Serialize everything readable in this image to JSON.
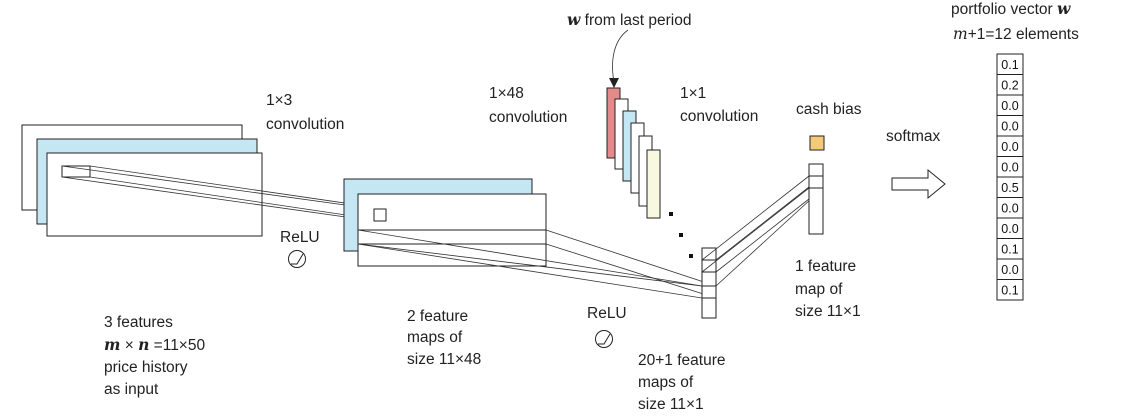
{
  "labels": {
    "conv_1x3_line1": "1×3",
    "conv_1x3_line2": "convolution",
    "conv_1x48_line1": "1×48",
    "conv_1x48_line2": "convolution",
    "conv_1x1_line1": "1×1",
    "conv_1x1_line2": "convolution",
    "w_last_period_symbol": "w",
    "w_last_period_text": " from last period",
    "relu_1": "ReLU",
    "relu_2": "ReLU",
    "cash_bias": "cash bias",
    "softmax": "softmax",
    "portfolio_vector_text": "portfolio vector ",
    "portfolio_vector_symbol": "w",
    "elements_m": "m",
    "elements_text": "+1=12 elements",
    "input_line1": "3 features",
    "input_math_m": "m",
    "input_math_times": " × ",
    "input_math_n": "n",
    "input_math_rest": " =11×50",
    "input_line3": "price history",
    "input_line4": "as input",
    "fm2_line1": "2 feature",
    "fm2_line2": "maps of",
    "fm2_line3": "size 11×48",
    "fm20_line1": "20+1 feature",
    "fm20_line2": "maps of",
    "fm20_line3": "size 11×1",
    "fm1_line1": "1 feature",
    "fm1_line2": "map of",
    "fm1_line3": "size 11×1"
  },
  "portfolio_values": [
    "0.1",
    "0.2",
    "0.0",
    "0.0",
    "0.0",
    "0.0",
    "0.5",
    "0.0",
    "0.0",
    "0.1",
    "0.0",
    "0.1"
  ],
  "colors": {
    "light_blue": "#c5e6f3",
    "pink": "#e58a8a",
    "light_yellow": "#f7f8df",
    "cash_orange": "#f5c97a"
  }
}
